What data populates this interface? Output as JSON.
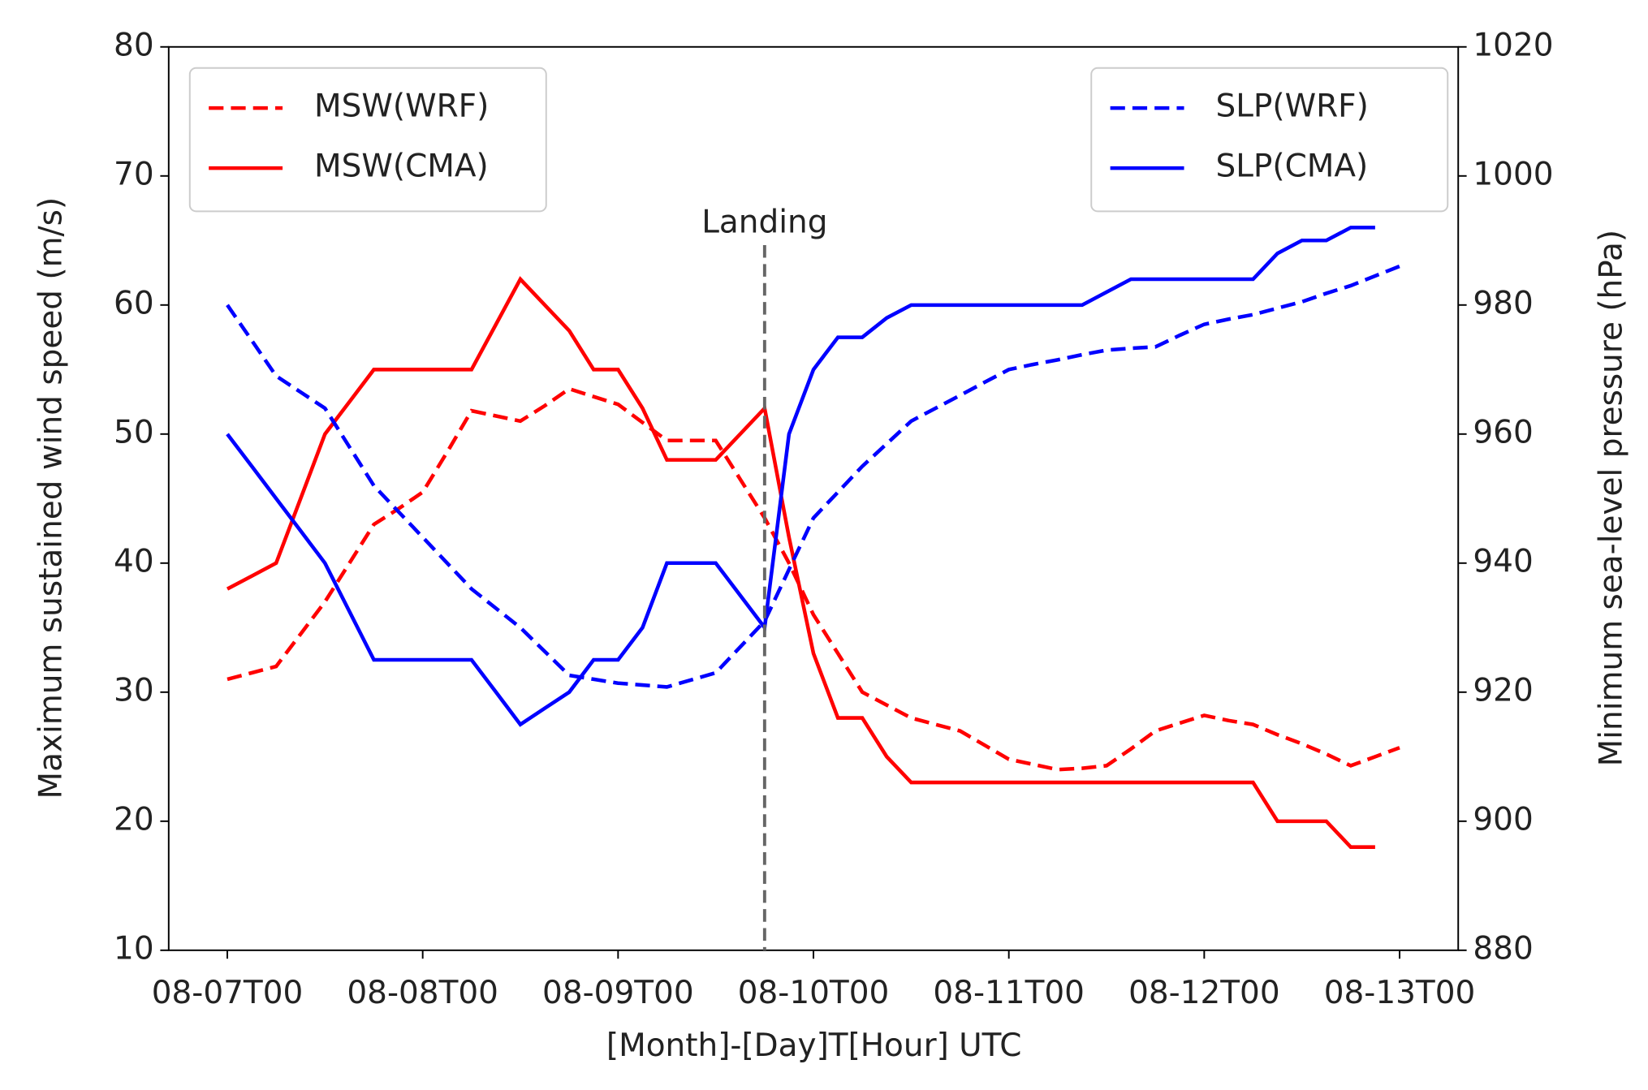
{
  "chart_data": {
    "type": "line",
    "xlabel": "[Month]-[Day]T[Hour] UTC",
    "ylabel": "Maximum sustained wind speed (m/s)",
    "y2label": "Minimum sea-level pressure (hPa)",
    "x": [
      "08-07T00",
      "08-07T03",
      "08-07T06",
      "08-07T09",
      "08-07T12",
      "08-07T15",
      "08-07T18",
      "08-07T21",
      "08-08T00",
      "08-08T03",
      "08-08T06",
      "08-08T09",
      "08-08T12",
      "08-08T15",
      "08-08T18",
      "08-08T21",
      "08-09T00",
      "08-09T03",
      "08-09T06",
      "08-09T09",
      "08-09T12",
      "08-09T15",
      "08-09T18",
      "08-09T21",
      "08-10T00",
      "08-10T03",
      "08-10T06",
      "08-10T09",
      "08-10T12",
      "08-10T15",
      "08-10T18",
      "08-10T21",
      "08-11T00",
      "08-11T03",
      "08-11T06",
      "08-11T09",
      "08-11T12",
      "08-11T15",
      "08-11T18",
      "08-11T21",
      "08-12T00",
      "08-12T03",
      "08-12T06",
      "08-12T09",
      "08-12T12",
      "08-12T15",
      "08-12T18",
      "08-12T21",
      "08-13T00"
    ],
    "series": [
      {
        "name": "MSW(WRF)",
        "color": "#ff0000",
        "linestyle": "dashed",
        "axis": "y",
        "values": [
          31,
          31.5,
          32,
          34.5,
          37,
          40,
          43,
          44.2,
          45.5,
          48.6,
          51.8,
          51.4,
          51,
          52.2,
          53.5,
          52.9,
          52.3,
          50.9,
          49.5,
          49.5,
          49.5,
          46.5,
          43.5,
          40,
          36,
          33,
          30,
          29,
          28,
          27.5,
          27,
          25.9,
          24.8,
          24.4,
          24,
          24.1,
          24.3,
          25.6,
          27,
          27.6,
          28.2,
          27.8,
          27.5,
          26.7,
          26,
          25.2,
          24.3,
          25,
          25.7
        ]
      },
      {
        "name": "MSW(CMA)",
        "color": "#ff0000",
        "linestyle": "solid",
        "axis": "y",
        "values": [
          38,
          39,
          40,
          45,
          50,
          52.5,
          55,
          55,
          55,
          55,
          55,
          58.5,
          62,
          60,
          58,
          55,
          55,
          52,
          48,
          48,
          48,
          50,
          52,
          42,
          33,
          28,
          28,
          25,
          23,
          23,
          23,
          23,
          23,
          23,
          23,
          23,
          23,
          23,
          23,
          23,
          23,
          23,
          23,
          20,
          20,
          20,
          18,
          18,
          null
        ]
      },
      {
        "name": "SLP(WRF)",
        "color": "#0000ff",
        "linestyle": "dashed",
        "axis": "y2",
        "values": [
          980,
          974.5,
          969,
          966.5,
          964,
          958,
          952,
          948,
          944,
          940,
          936,
          933,
          930,
          926.3,
          922.6,
          922,
          921.4,
          921.1,
          920.8,
          921.9,
          923,
          927,
          931,
          939,
          947,
          951,
          955,
          958.5,
          962,
          964,
          966,
          968,
          970,
          970.8,
          971.5,
          972.3,
          973,
          973.3,
          973.5,
          975.3,
          977,
          977.8,
          978.5,
          979.5,
          980.5,
          981.8,
          983,
          984.5,
          986
        ]
      },
      {
        "name": "SLP(CMA)",
        "color": "#0000ff",
        "linestyle": "solid",
        "axis": "y2",
        "values": [
          960,
          955,
          950,
          945,
          940,
          932.5,
          925,
          925,
          925,
          925,
          925,
          920,
          915,
          917.5,
          920,
          925,
          925,
          930,
          940,
          940,
          940,
          935,
          930,
          960,
          970,
          975,
          975,
          978,
          980,
          980,
          980,
          980,
          980,
          980,
          980,
          980,
          982,
          984,
          984,
          984,
          984,
          984,
          984,
          988,
          990,
          990,
          992,
          992,
          null
        ]
      }
    ],
    "ylim": [
      10,
      80
    ],
    "yticks": [
      10,
      20,
      30,
      40,
      50,
      60,
      70,
      80
    ],
    "y2lim": [
      880,
      1020
    ],
    "y2ticks": [
      880,
      900,
      920,
      940,
      960,
      980,
      1000,
      1020
    ],
    "xticks": [
      "08-07T00",
      "08-08T00",
      "08-09T00",
      "08-10T00",
      "08-11T00",
      "08-12T00",
      "08-13T00"
    ],
    "annotation": {
      "text": "Landing",
      "x": "08-09T18",
      "color": "#666666"
    },
    "legend": {
      "y": "upper left",
      "y2": "upper right"
    }
  }
}
